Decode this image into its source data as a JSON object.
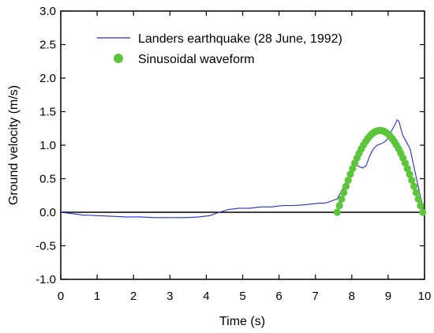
{
  "chart_data": {
    "type": "line",
    "title": "",
    "xlabel": "Time (s)",
    "ylabel": "Ground velocity (m/s)",
    "xlim": [
      0,
      10
    ],
    "ylim": [
      -1.0,
      3.0
    ],
    "xticks": [
      "0",
      "1",
      "2",
      "3",
      "4",
      "5",
      "6",
      "7",
      "8",
      "9",
      "10"
    ],
    "yticks": [
      "-1.0",
      "-0.5",
      "0.0",
      "0.5",
      "1.0",
      "1.5",
      "2.0",
      "2.5",
      "3.0"
    ],
    "grid": false,
    "legend_position": "top-center",
    "reference_line_y": 0.0,
    "series": [
      {
        "name": "Landers earthquake (28 June, 1992)",
        "style": "line",
        "color": "#2a2ad2",
        "x": [
          0.0,
          0.3,
          0.6,
          1.0,
          1.4,
          1.8,
          2.2,
          2.6,
          3.0,
          3.4,
          3.8,
          4.1,
          4.3,
          4.6,
          4.9,
          5.2,
          5.5,
          5.8,
          6.1,
          6.4,
          6.7,
          7.0,
          7.3,
          7.6,
          7.8,
          8.0,
          8.1,
          8.2,
          8.3,
          8.4,
          8.5,
          8.6,
          8.7,
          8.8,
          8.9,
          9.0,
          9.1,
          9.2,
          9.25,
          9.3,
          9.4,
          9.5,
          9.6,
          9.7,
          9.8,
          9.9,
          10.0
        ],
        "y": [
          0.0,
          -0.02,
          -0.04,
          -0.05,
          -0.06,
          -0.07,
          -0.07,
          -0.08,
          -0.08,
          -0.08,
          -0.07,
          -0.05,
          -0.01,
          0.04,
          0.06,
          0.06,
          0.08,
          0.08,
          0.1,
          0.1,
          0.11,
          0.13,
          0.14,
          0.2,
          0.4,
          0.66,
          0.72,
          0.68,
          0.66,
          0.7,
          0.85,
          0.95,
          1.0,
          1.02,
          1.05,
          1.1,
          1.22,
          1.32,
          1.38,
          1.35,
          1.15,
          1.05,
          0.95,
          0.7,
          0.45,
          0.2,
          0.0
        ]
      },
      {
        "name": "Sinusoidal waveform",
        "style": "markers",
        "color": "#5cc53b",
        "x_start": 7.6,
        "x_end": 9.95,
        "peak": 1.22,
        "point_count": 40
      }
    ]
  }
}
